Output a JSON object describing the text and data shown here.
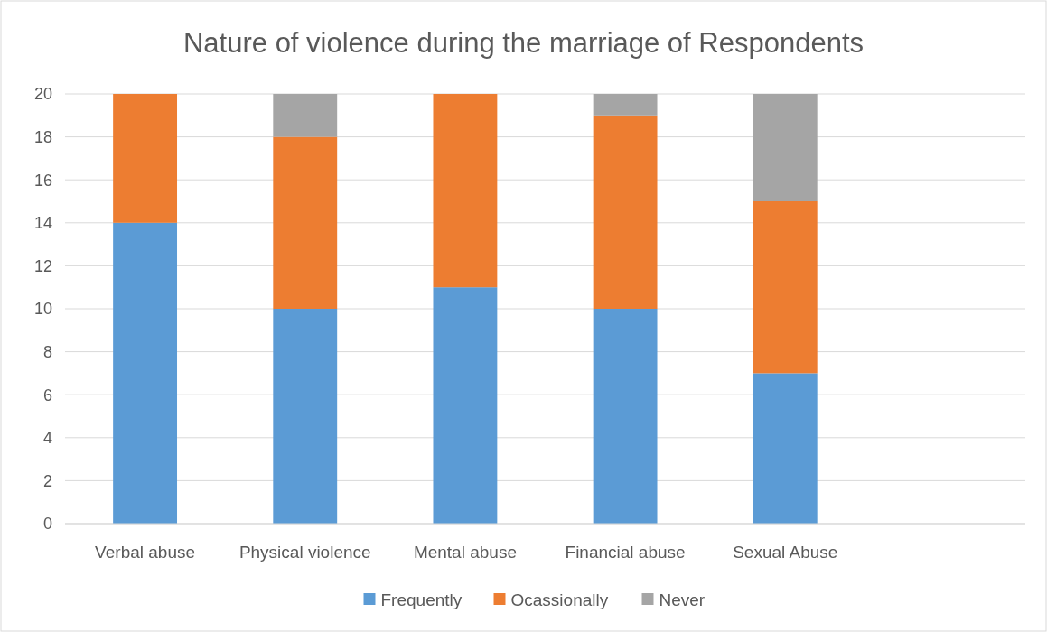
{
  "chart_data": {
    "type": "bar",
    "title": "Nature of violence during the marriage of Respondents",
    "categories": [
      "Verbal abuse",
      "Physical violence",
      "Mental abuse",
      "Financial abuse",
      "Sexual Abuse",
      null
    ],
    "stacked": true,
    "series": [
      {
        "name": "Frequently",
        "color": "#5b9bd5",
        "values": [
          14,
          10,
          11,
          10,
          7,
          null
        ]
      },
      {
        "name": "Ocassionally",
        "color": "#ed7d31",
        "values": [
          6,
          8,
          9,
          9,
          8,
          null
        ]
      },
      {
        "name": "Never",
        "color": "#a5a5a5",
        "values": [
          0,
          2,
          0,
          1,
          5,
          null
        ]
      }
    ],
    "ylim": [
      0,
      20
    ],
    "yticks": [
      0,
      2,
      4,
      6,
      8,
      10,
      12,
      14,
      16,
      18,
      20
    ],
    "grid": "y",
    "legend": "bottom"
  }
}
